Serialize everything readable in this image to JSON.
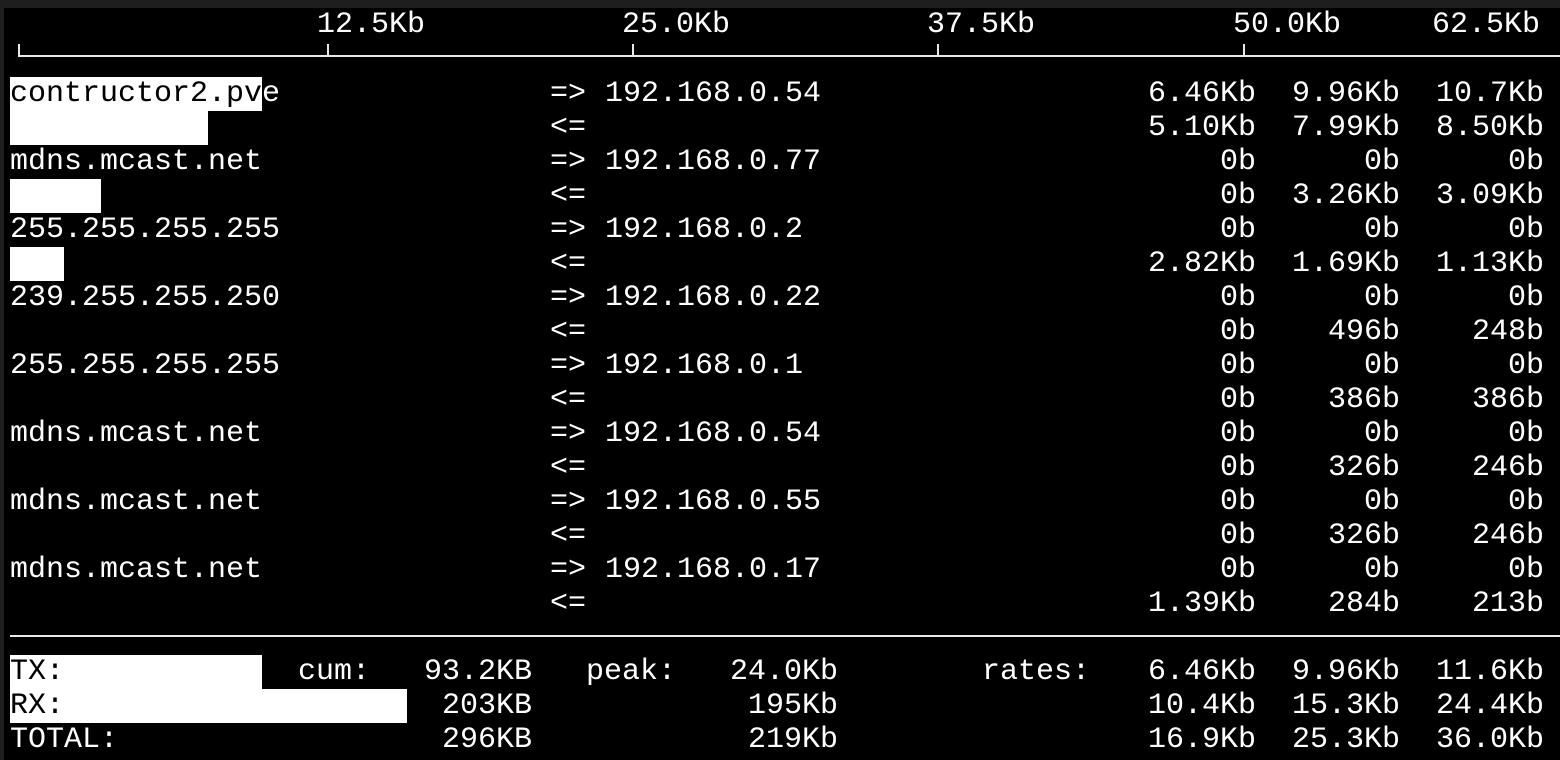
{
  "scale": {
    "labels": [
      "12.5Kb",
      "25.0Kb",
      "37.5Kb",
      "50.0Kb",
      "62.5Kb"
    ],
    "max_kb": 62.5
  },
  "hosts": [
    {
      "host": "contructor2.pve",
      "tx_arrow": "=>",
      "rx_arrow": "<=",
      "peer": "192.168.0.54",
      "tx": [
        "6.46Kb",
        "9.96Kb",
        "10.7Kb"
      ],
      "rx": [
        "5.10Kb",
        "7.99Kb",
        "8.50Kb"
      ],
      "tx_bar_kb": 10.3,
      "rx_bar_kb": 8.1
    },
    {
      "host": "mdns.mcast.net",
      "tx_arrow": "=>",
      "rx_arrow": "<=",
      "peer": "192.168.0.77",
      "tx": [
        "0b",
        "0b",
        "0b"
      ],
      "rx": [
        "0b",
        "3.26Kb",
        "3.09Kb"
      ],
      "tx_bar_kb": 0,
      "rx_bar_kb": 3.7
    },
    {
      "host": "255.255.255.255",
      "tx_arrow": "=>",
      "rx_arrow": "<=",
      "peer": "192.168.0.2",
      "tx": [
        "0b",
        "0b",
        "0b"
      ],
      "rx": [
        "2.82Kb",
        "1.69Kb",
        "1.13Kb"
      ],
      "tx_bar_kb": 0,
      "rx_bar_kb": 2.2
    },
    {
      "host": "239.255.255.250",
      "tx_arrow": "=>",
      "rx_arrow": "<=",
      "peer": "192.168.0.22",
      "tx": [
        "0b",
        "0b",
        "0b"
      ],
      "rx": [
        "0b",
        "496b",
        "248b"
      ],
      "tx_bar_kb": 0,
      "rx_bar_kb": 0
    },
    {
      "host": "255.255.255.255",
      "tx_arrow": "=>",
      "rx_arrow": "<=",
      "peer": "192.168.0.1",
      "tx": [
        "0b",
        "0b",
        "0b"
      ],
      "rx": [
        "0b",
        "386b",
        "386b"
      ],
      "tx_bar_kb": 0,
      "rx_bar_kb": 0
    },
    {
      "host": "mdns.mcast.net",
      "tx_arrow": "=>",
      "rx_arrow": "<=",
      "peer": "192.168.0.54",
      "tx": [
        "0b",
        "0b",
        "0b"
      ],
      "rx": [
        "0b",
        "326b",
        "246b"
      ],
      "tx_bar_kb": 0,
      "rx_bar_kb": 0
    },
    {
      "host": "mdns.mcast.net",
      "tx_arrow": "=>",
      "rx_arrow": "<=",
      "peer": "192.168.0.55",
      "tx": [
        "0b",
        "0b",
        "0b"
      ],
      "rx": [
        "0b",
        "326b",
        "246b"
      ],
      "tx_bar_kb": 0,
      "rx_bar_kb": 0
    },
    {
      "host": "mdns.mcast.net",
      "tx_arrow": "=>",
      "rx_arrow": "<=",
      "peer": "192.168.0.17",
      "tx": [
        "0b",
        "0b",
        "0b"
      ],
      "rx": [
        "1.39Kb",
        "284b",
        "213b"
      ],
      "tx_bar_kb": 0,
      "rx_bar_kb": 0
    }
  ],
  "totals": {
    "cum_label": "cum:",
    "peak_label": "peak:",
    "rates_label": "rates:",
    "rows": [
      {
        "label": "TX:",
        "cum": "93.2KB",
        "peak": "24.0Kb",
        "rates": [
          "6.46Kb",
          "9.96Kb",
          "11.6Kb"
        ],
        "bar_kb": 10.3
      },
      {
        "label": "RX:",
        "cum": "203KB",
        "peak": "195Kb",
        "rates": [
          "10.4Kb",
          "15.3Kb",
          "24.4Kb"
        ],
        "bar_kb": 16.2
      },
      {
        "label": "TOTAL:",
        "cum": "296KB",
        "peak": "219Kb",
        "rates": [
          "16.9Kb",
          "25.3Kb",
          "36.0Kb"
        ],
        "bar_kb": 0
      }
    ]
  },
  "colors": {
    "background": "#000000",
    "foreground": "#ffffff",
    "bar": "#ffffff"
  }
}
